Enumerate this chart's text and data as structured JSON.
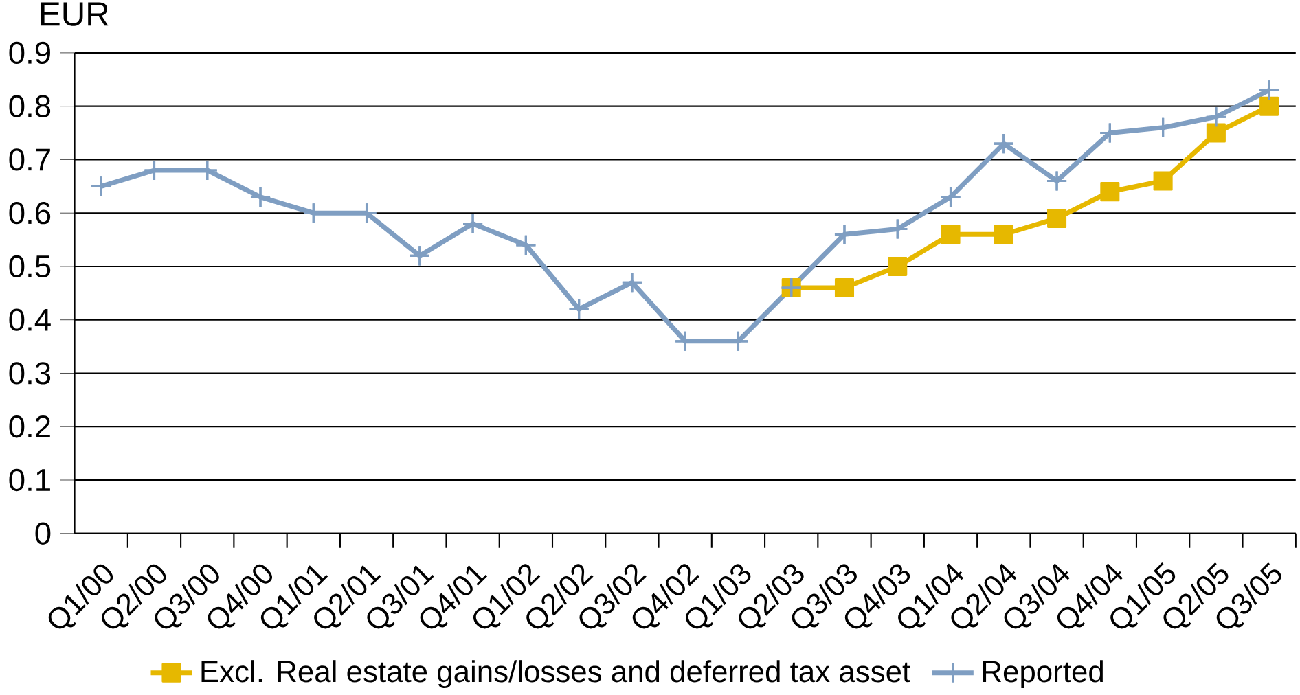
{
  "chart_data": {
    "type": "line",
    "ylabel": "EUR",
    "categories": [
      "Q1/00",
      "Q2/00",
      "Q3/00",
      "Q4/00",
      "Q1/01",
      "Q2/01",
      "Q3/01",
      "Q4/01",
      "Q1/02",
      "Q2/02",
      "Q3/02",
      "Q4/02",
      "Q1/03",
      "Q2/03",
      "Q3/03",
      "Q4/03",
      "Q1/04",
      "Q2/04",
      "Q3/04",
      "Q4/04",
      "Q1/05",
      "Q2/05",
      "Q3/05"
    ],
    "series": [
      {
        "name": "Excl. Real estate gains/losses and deferred tax asset",
        "color": "#e6b800",
        "marker": "square",
        "values": [
          null,
          null,
          null,
          null,
          null,
          null,
          null,
          null,
          null,
          null,
          null,
          null,
          null,
          0.46,
          0.46,
          0.5,
          0.56,
          0.56,
          0.59,
          0.64,
          0.66,
          0.75,
          0.8
        ]
      },
      {
        "name": "Reported",
        "color": "#7f9ec2",
        "marker": "cross",
        "values": [
          0.65,
          0.68,
          0.68,
          0.63,
          0.6,
          0.6,
          0.52,
          0.58,
          0.54,
          0.42,
          0.47,
          0.36,
          0.36,
          0.46,
          0.56,
          0.57,
          0.63,
          0.73,
          0.66,
          0.75,
          0.76,
          0.78,
          0.83
        ]
      }
    ],
    "ylim": [
      0,
      0.9
    ],
    "yticks": [
      0,
      0.1,
      0.2,
      0.3,
      0.4,
      0.5,
      0.6,
      0.7,
      0.8,
      0.9
    ],
    "grid": "y",
    "legend": "bottom",
    "line_style": "solid"
  }
}
